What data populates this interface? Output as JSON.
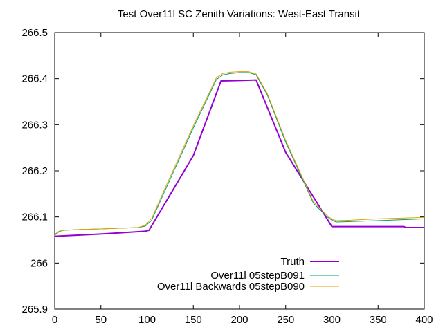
{
  "chart_data": {
    "type": "line",
    "title": "Test Over11l SC Zenith Variations: West-East Transit",
    "xlabel": "",
    "ylabel": "",
    "xlim": [
      0,
      400
    ],
    "ylim": [
      265.9,
      266.5
    ],
    "x_ticks": [
      "0",
      "50",
      "100",
      "150",
      "200",
      "250",
      "300",
      "350",
      "400"
    ],
    "y_ticks": [
      "265.9",
      "266",
      "266.1",
      "266.2",
      "266.3",
      "266.4",
      "266.5"
    ],
    "grid": false,
    "legend_position": "bottom-center",
    "series": [
      {
        "name": "Truth",
        "color": "#9400d3",
        "x": [
          0,
          50,
          98,
          102,
          150,
          180,
          200,
          218,
          250,
          300,
          350,
          378,
          380,
          400
        ],
        "y": [
          266.058,
          266.063,
          266.069,
          266.071,
          266.233,
          266.395,
          266.396,
          266.397,
          266.24,
          266.079,
          266.079,
          266.079,
          266.077,
          266.077
        ]
      },
      {
        "name": "Over11l 05stepB091",
        "color": "#009e73",
        "x": [
          0,
          5,
          10,
          30,
          50,
          90,
          98,
          105,
          120,
          150,
          175,
          182,
          190,
          200,
          210,
          218,
          230,
          250,
          280,
          295,
          300,
          305,
          320,
          350,
          400
        ],
        "y": [
          266.062,
          266.069,
          266.071,
          266.073,
          266.074,
          266.077,
          266.08,
          266.093,
          266.16,
          266.293,
          266.398,
          266.408,
          266.411,
          266.413,
          266.413,
          266.408,
          266.365,
          266.262,
          266.13,
          266.1,
          266.093,
          266.089,
          266.09,
          266.092,
          266.096
        ]
      },
      {
        "name": "Over11l Backwards 05stepB090",
        "color": "#e69f00",
        "x": [
          0,
          5,
          10,
          30,
          50,
          90,
          98,
          105,
          120,
          150,
          175,
          182,
          190,
          200,
          210,
          218,
          230,
          250,
          280,
          295,
          300,
          305,
          320,
          350,
          400
        ],
        "y": [
          266.06,
          266.068,
          266.071,
          266.073,
          266.074,
          266.077,
          266.082,
          266.097,
          266.165,
          266.298,
          266.402,
          266.411,
          266.414,
          266.415,
          266.415,
          266.41,
          266.368,
          266.266,
          266.133,
          266.103,
          266.095,
          266.092,
          266.093,
          266.096,
          266.099
        ]
      }
    ]
  }
}
